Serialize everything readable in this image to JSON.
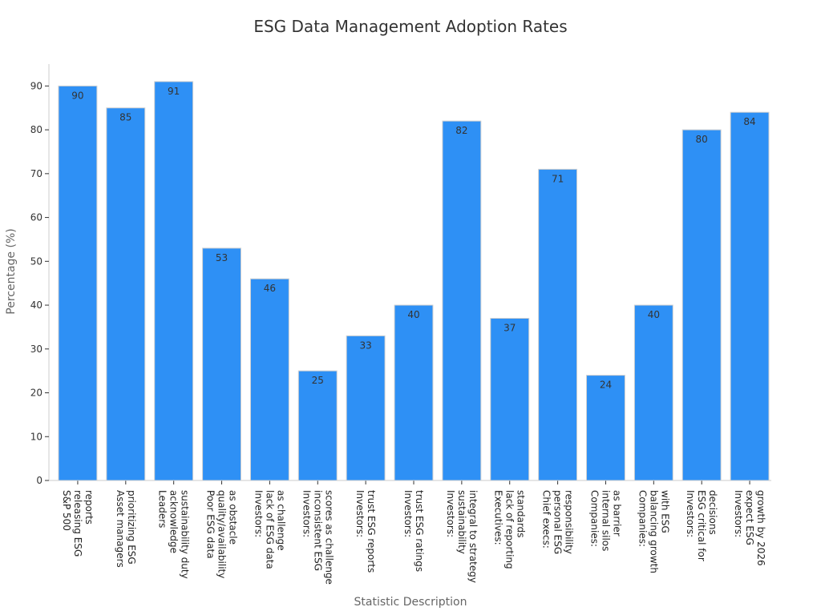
{
  "chart_data": {
    "type": "bar",
    "title": "ESG Data Management Adoption Rates",
    "xlabel": "Statistic Description",
    "ylabel": "Percentage (%)",
    "ylim": [
      0,
      95
    ],
    "yticks": [
      0,
      10,
      20,
      30,
      40,
      50,
      60,
      70,
      80,
      90
    ],
    "grid": false,
    "bar_color": "#2e90f5",
    "categories": [
      [
        "S&P 500",
        "releasing ESG",
        "reports"
      ],
      [
        "Asset managers",
        "prioritizing ESG"
      ],
      [
        "Leaders",
        "acknowledge",
        "sustainability duty"
      ],
      [
        "Poor ESG data",
        "quality/availability",
        "as obstacle"
      ],
      [
        "Investors:",
        "lack of ESG data",
        "as challenge"
      ],
      [
        "Investors:",
        "inconsistent ESG",
        "scores as challenge"
      ],
      [
        "Investors:",
        "trust ESG reports"
      ],
      [
        "Investors:",
        "trust ESG ratings"
      ],
      [
        "Investors:",
        "sustainability",
        "integral to strategy"
      ],
      [
        "Executives:",
        "lack of reporting",
        "standards"
      ],
      [
        "Chief execs:",
        "personal ESG",
        "responsibility"
      ],
      [
        "Companies:",
        "internal silos",
        "as barrier"
      ],
      [
        "Companies:",
        "balancing growth",
        "with ESG"
      ],
      [
        "Investors:",
        "ESG critical for",
        "decisions"
      ],
      [
        "Investors:",
        "expect ESG",
        "growth by 2026"
      ]
    ],
    "values": [
      90,
      85,
      91,
      53,
      46,
      25,
      33,
      40,
      82,
      37,
      71,
      24,
      40,
      80,
      84
    ]
  }
}
